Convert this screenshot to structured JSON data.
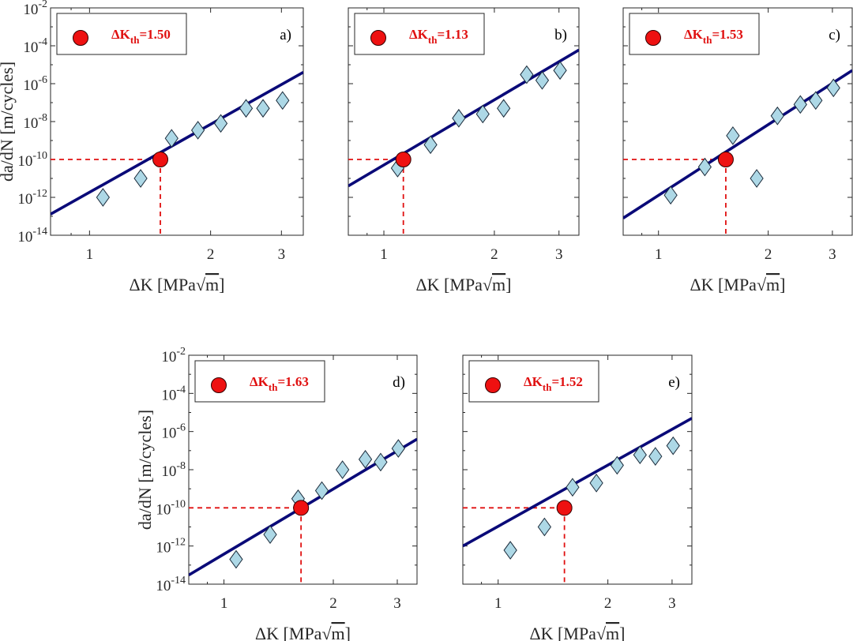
{
  "chart_data": [
    {
      "type": "scatter",
      "panel_label": "a)",
      "xlabel": "ΔK [MPa√m]",
      "ylabel": "da/dN [m/cycles]",
      "x_scale": "log",
      "y_scale": "log",
      "xlim": [
        0.8,
        3.4
      ],
      "ylim": [
        1e-14,
        0.01
      ],
      "x_ticks": [
        "1",
        "2",
        "3"
      ],
      "y_ticks": [
        "10^-2",
        "10^-4",
        "10^-6",
        "10^-8",
        "10^-10",
        "10^-12",
        "10^-14"
      ],
      "legend": {
        "label": "ΔK_th=1.50",
        "placement": "top-left"
      },
      "threshold": {
        "x": 1.5,
        "y": 1e-10
      },
      "fit_line": {
        "x": [
          0.8,
          3.4
        ],
        "y": [
          1.3e-13,
          4e-06
        ]
      },
      "points": {
        "x": [
          1.08,
          1.34,
          1.6,
          1.86,
          2.12,
          2.45,
          2.7,
          3.02
        ],
        "y": [
          1e-12,
          1e-11,
          1.3e-09,
          3.5e-09,
          8e-09,
          5e-08,
          5e-08,
          1.3e-07
        ]
      }
    },
    {
      "type": "scatter",
      "panel_label": "b)",
      "xlabel": "ΔK [MPa√m]",
      "ylabel": "",
      "x_scale": "log",
      "y_scale": "log",
      "xlim": [
        0.8,
        3.4
      ],
      "ylim": [
        1e-14,
        0.01
      ],
      "x_ticks": [
        "1",
        "2",
        "3"
      ],
      "y_ticks": [],
      "legend": {
        "label": "ΔK_th=1.13",
        "placement": "top-left"
      },
      "threshold": {
        "x": 1.13,
        "y": 1e-10
      },
      "fit_line": {
        "x": [
          0.8,
          3.4
        ],
        "y": [
          4e-12,
          6e-05
        ]
      },
      "points": {
        "x": [
          1.09,
          1.34,
          1.6,
          1.86,
          2.12,
          2.45,
          2.7,
          3.02
        ],
        "y": [
          3.5e-11,
          6e-10,
          1.5e-08,
          2.5e-08,
          5e-08,
          3e-06,
          1.5e-06,
          5e-06
        ]
      }
    },
    {
      "type": "scatter",
      "panel_label": "c)",
      "xlabel": "ΔK [MPa√m]",
      "ylabel": "",
      "x_scale": "log",
      "y_scale": "log",
      "xlim": [
        0.8,
        3.4
      ],
      "ylim": [
        1e-14,
        0.01
      ],
      "x_ticks": [
        "1",
        "2",
        "3"
      ],
      "y_ticks": [],
      "legend": {
        "label": "ΔK_th=1.53",
        "placement": "top-left"
      },
      "threshold": {
        "x": 1.53,
        "y": 1e-10
      },
      "fit_line": {
        "x": [
          0.8,
          3.4
        ],
        "y": [
          8e-14,
          5e-06
        ]
      },
      "points": {
        "x": [
          1.08,
          1.34,
          1.6,
          1.86,
          2.12,
          2.45,
          2.7,
          3.02
        ],
        "y": [
          1.3e-12,
          4e-11,
          1.8e-09,
          1e-11,
          2e-08,
          8e-08,
          1.3e-07,
          6e-07
        ]
      }
    },
    {
      "type": "scatter",
      "panel_label": "d)",
      "xlabel": "ΔK [MPa√m]",
      "ylabel": "da/dN [m/cycles]",
      "x_scale": "log",
      "y_scale": "log",
      "xlim": [
        0.8,
        3.4
      ],
      "ylim": [
        1e-14,
        0.01
      ],
      "x_ticks": [
        "1",
        "2",
        "3"
      ],
      "y_ticks": [
        "10^-2",
        "10^-4",
        "10^-6",
        "10^-8",
        "10^-10",
        "10^-12",
        "10^-14"
      ],
      "legend": {
        "label": "ΔK_th=1.63",
        "placement": "top-left"
      },
      "threshold": {
        "x": 1.63,
        "y": 1e-10
      },
      "fit_line": {
        "x": [
          0.8,
          3.4
        ],
        "y": [
          3e-14,
          4e-07
        ]
      },
      "points": {
        "x": [
          1.08,
          1.34,
          1.6,
          1.86,
          2.12,
          2.45,
          2.7,
          3.02
        ],
        "y": [
          2e-13,
          4e-12,
          3e-10,
          8e-10,
          1e-08,
          3.5e-08,
          2.5e-08,
          1.3e-07
        ]
      }
    },
    {
      "type": "scatter",
      "panel_label": "e)",
      "xlabel": "ΔK [MPa√m]",
      "ylabel": "",
      "x_scale": "log",
      "y_scale": "log",
      "xlim": [
        0.8,
        3.4
      ],
      "ylim": [
        1e-14,
        0.01
      ],
      "x_ticks": [
        "1",
        "2",
        "3"
      ],
      "y_ticks": [],
      "legend": {
        "label": "ΔK_th=1.52",
        "placement": "top-left"
      },
      "threshold": {
        "x": 1.52,
        "y": 1e-10
      },
      "fit_line": {
        "x": [
          0.8,
          3.4
        ],
        "y": [
          1e-12,
          5e-06
        ]
      },
      "points": {
        "x": [
          1.08,
          1.34,
          1.6,
          1.86,
          2.12,
          2.45,
          2.7,
          3.02
        ],
        "y": [
          6e-13,
          1e-11,
          1.2e-09,
          2e-09,
          1.7e-08,
          6e-08,
          5e-08,
          1.8e-07
        ]
      }
    }
  ]
}
